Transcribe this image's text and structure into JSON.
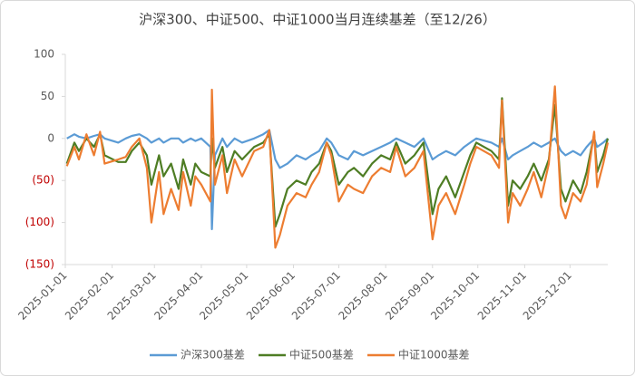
{
  "chart_data": {
    "type": "line",
    "title": "沪深300、中证500、中证1000当月连续基差（至12/26）",
    "x": [
      "2025-01-02",
      "2025-01-07",
      "2025-01-10",
      "2025-01-15",
      "2025-01-20",
      "2025-01-24",
      "2025-01-27",
      "2025-02-05",
      "2025-02-10",
      "2025-02-14",
      "2025-02-19",
      "2025-02-24",
      "2025-02-27",
      "2025-03-04",
      "2025-03-07",
      "2025-03-12",
      "2025-03-17",
      "2025-03-20",
      "2025-03-25",
      "2025-03-28",
      "2025-04-01",
      "2025-04-07",
      "2025-04-08",
      "2025-04-10",
      "2025-04-15",
      "2025-04-18",
      "2025-04-23",
      "2025-04-28",
      "2025-05-06",
      "2025-05-12",
      "2025-05-16",
      "2025-05-20",
      "2025-05-23",
      "2025-05-28",
      "2025-06-03",
      "2025-06-09",
      "2025-06-13",
      "2025-06-18",
      "2025-06-23",
      "2025-06-26",
      "2025-07-01",
      "2025-07-07",
      "2025-07-11",
      "2025-07-17",
      "2025-07-23",
      "2025-07-29",
      "2025-08-04",
      "2025-08-08",
      "2025-08-14",
      "2025-08-20",
      "2025-08-26",
      "2025-09-01",
      "2025-09-05",
      "2025-09-10",
      "2025-09-16",
      "2025-09-22",
      "2025-09-26",
      "2025-09-30",
      "2025-10-10",
      "2025-10-15",
      "2025-10-17",
      "2025-10-21",
      "2025-10-24",
      "2025-10-29",
      "2025-11-03",
      "2025-11-07",
      "2025-11-12",
      "2025-11-17",
      "2025-11-21",
      "2025-11-25",
      "2025-11-28",
      "2025-12-03",
      "2025-12-08",
      "2025-12-12",
      "2025-12-17",
      "2025-12-19",
      "2025-12-23",
      "2025-12-26"
    ],
    "series": [
      {
        "name": "沪深300基差",
        "color": "#5b9bd5",
        "values": [
          0,
          5,
          2,
          0,
          3,
          5,
          0,
          -5,
          0,
          3,
          5,
          0,
          -5,
          0,
          -5,
          0,
          0,
          -5,
          0,
          -3,
          0,
          -10,
          -108,
          -20,
          0,
          -10,
          0,
          -5,
          0,
          5,
          10,
          -25,
          -35,
          -30,
          -20,
          -25,
          -20,
          -15,
          0,
          -5,
          -20,
          -25,
          -15,
          -20,
          -15,
          -10,
          -5,
          0,
          -5,
          -10,
          0,
          -25,
          -20,
          -15,
          -20,
          -10,
          -5,
          0,
          -5,
          -10,
          0,
          -25,
          -20,
          -15,
          -10,
          -5,
          -10,
          -5,
          0,
          -15,
          -20,
          -15,
          -20,
          -10,
          0,
          -10,
          -5,
          0
        ]
      },
      {
        "name": "中证500基差",
        "color": "#4e7d24",
        "values": [
          -30,
          -5,
          -15,
          0,
          -10,
          5,
          -20,
          -28,
          -28,
          -15,
          -5,
          -20,
          -55,
          -20,
          -45,
          -30,
          -60,
          -25,
          -55,
          -30,
          -40,
          -45,
          0,
          -35,
          -10,
          -40,
          -15,
          -25,
          -10,
          -5,
          5,
          -105,
          -90,
          -60,
          -50,
          -55,
          -40,
          -30,
          -5,
          -15,
          -55,
          -40,
          -35,
          -45,
          -30,
          -20,
          -25,
          -5,
          -30,
          -20,
          -5,
          -90,
          -60,
          -45,
          -70,
          -40,
          -20,
          -5,
          -15,
          -25,
          48,
          -80,
          -50,
          -60,
          -45,
          -30,
          -50,
          -25,
          40,
          -60,
          -75,
          -50,
          -65,
          -40,
          5,
          -40,
          -20,
          0
        ]
      },
      {
        "name": "中证1000基差",
        "color": "#ed7d31",
        "values": [
          -33,
          -10,
          -25,
          5,
          -20,
          8,
          -30,
          -25,
          -22,
          -10,
          0,
          -35,
          -100,
          -40,
          -90,
          -60,
          -85,
          -40,
          -80,
          -45,
          -55,
          -75,
          58,
          -55,
          -20,
          -65,
          -25,
          -45,
          -15,
          -10,
          10,
          -130,
          -115,
          -80,
          -65,
          -70,
          -55,
          -40,
          -5,
          -20,
          -75,
          -55,
          -60,
          -65,
          -45,
          -35,
          -40,
          -10,
          -45,
          -35,
          -15,
          -120,
          -80,
          -65,
          -90,
          -55,
          -30,
          -10,
          -20,
          -35,
          45,
          -100,
          -65,
          -80,
          -60,
          -40,
          -70,
          -30,
          62,
          -80,
          -95,
          -65,
          -75,
          -55,
          8,
          -58,
          -30,
          -5
        ]
      }
    ],
    "xlim": [
      "2025-01-01",
      "2025-12-26"
    ],
    "xticks": [
      "2025-01-01",
      "2025-02-01",
      "2025-03-01",
      "2025-04-01",
      "2025-05-01",
      "2025-06-01",
      "2025-07-01",
      "2025-08-01",
      "2025-09-01",
      "2025-10-01",
      "2025-11-01",
      "2025-12-01"
    ],
    "ylim": [
      -150,
      100
    ],
    "yticks": [
      100,
      50,
      0,
      {
        "value": -50,
        "label": "(50)"
      },
      {
        "value": -100,
        "label": "(100)"
      },
      {
        "value": -150,
        "label": "(150)"
      }
    ],
    "negative_tick_color": "#c00000",
    "legend": "bottom"
  }
}
